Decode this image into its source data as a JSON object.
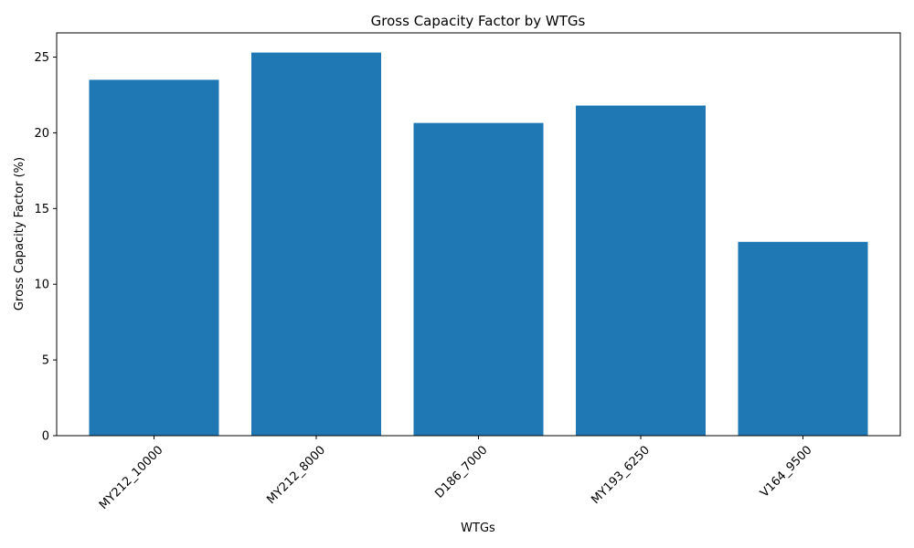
{
  "chart_data": {
    "type": "bar",
    "title": "Gross Capacity Factor by WTGs",
    "xlabel": "WTGs",
    "ylabel": "Gross Capacity Factor (%)",
    "categories": [
      "MY212_10000",
      "MY212_8000",
      "D186_7000",
      "MY193_6250",
      "V164_9500"
    ],
    "values": [
      23.5,
      25.3,
      20.65,
      21.8,
      12.8
    ],
    "ylim": [
      0,
      26.6
    ],
    "yticks": [
      0,
      5,
      10,
      15,
      20,
      25
    ],
    "x_tick_rotation_deg": 45,
    "grid": false,
    "legend": "none",
    "bar_color": "#1f77b4"
  }
}
